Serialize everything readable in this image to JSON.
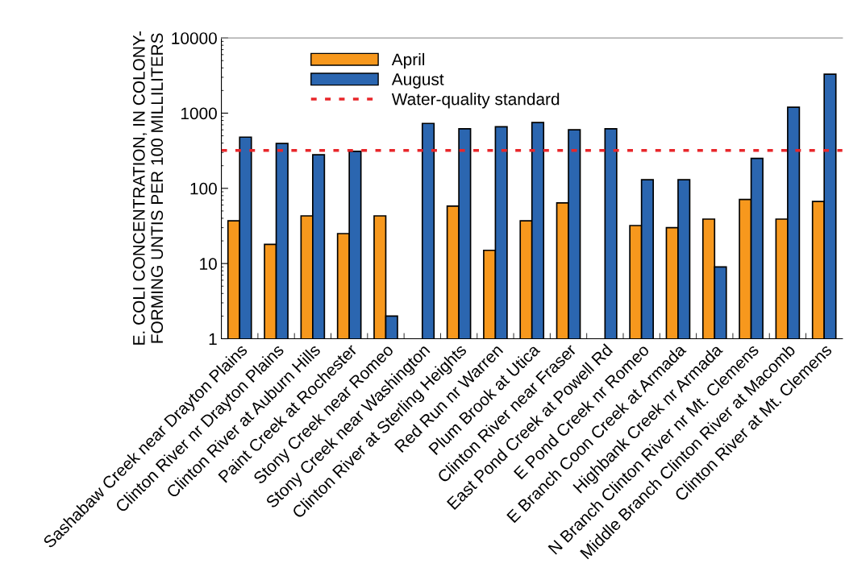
{
  "chart_data": {
    "type": "bar",
    "ylabel": "E. COLI CONCENTRATION, IN COLONY-\nFORMING UNTIS PER 100 MILLILITERS",
    "categories": [
      "Sashabaw Creek near Drayton Plains",
      "Clinton River nr Drayton Plains",
      "Clinton River at Auburn Hills",
      "Paint Creek at Rochester",
      "Stony Creek near Romeo",
      "Stony Creek near Washington",
      "Clinton River at Sterling Heights",
      "Red Run nr Warren",
      "Plum Brook at Utica",
      "Clinton River near Fraser",
      "East Pond Creek at Powell Rd",
      "E Pond Creek nr Romeo",
      "E Branch Coon Creek at Armada",
      "Highbank Creek nr Armada",
      "N Branch Clinton River nr Mt. Clemens",
      "Middle Branch Clinton River at Macomb",
      "Clinton River at Mt. Clemens"
    ],
    "series": [
      {
        "name": "April",
        "color": "#f7981d",
        "values": [
          37,
          18,
          43,
          25,
          43,
          null,
          58,
          15,
          37,
          64,
          null,
          32,
          30,
          39,
          71,
          39,
          67
        ]
      },
      {
        "name": "August",
        "color": "#2b66b0",
        "values": [
          480,
          395,
          280,
          310,
          2,
          730,
          620,
          660,
          750,
          600,
          620,
          130,
          130,
          9,
          250,
          1200,
          3300
        ]
      }
    ],
    "log": true,
    "ylim": [
      1,
      10000
    ],
    "yticks": [
      1,
      10,
      100,
      1000,
      10000
    ],
    "ref_lines": [
      {
        "axis": "y",
        "value": 320,
        "label": "Water-quality standard",
        "color": "#e8262a",
        "line_style": "dotted"
      }
    ],
    "legend": "top left",
    "grid": false
  }
}
